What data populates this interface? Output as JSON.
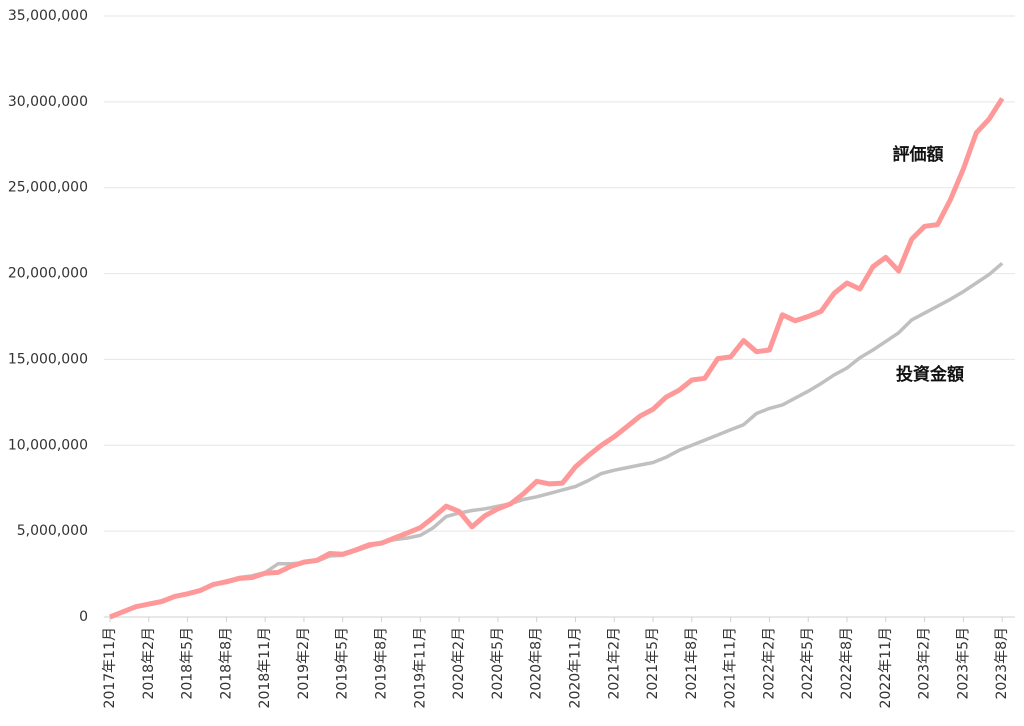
{
  "chart_data": {
    "type": "line",
    "categories": [
      "2017年11月",
      null,
      null,
      "2018年2月",
      null,
      null,
      "2018年5月",
      null,
      null,
      "2018年8月",
      null,
      null,
      "2018年11月",
      null,
      null,
      "2019年2月",
      null,
      null,
      "2019年5月",
      null,
      null,
      "2019年8月",
      null,
      null,
      "2019年11月",
      null,
      null,
      "2020年2月",
      null,
      null,
      "2020年5月",
      null,
      null,
      "2020年8月",
      null,
      null,
      "2020年11月",
      null,
      null,
      "2021年2月",
      null,
      null,
      "2021年5月",
      null,
      null,
      "2021年8月",
      null,
      null,
      "2021年11月",
      null,
      null,
      "2022年2月",
      null,
      null,
      "2022年5月",
      null,
      null,
      "2022年8月",
      null,
      null,
      "2022年11月",
      null,
      null,
      "2023年2月",
      null,
      null,
      "2023年5月",
      null,
      null,
      "2023年8月"
    ],
    "series": [
      {
        "name": "評価額",
        "color": "#ff9999",
        "values": [
          0,
          300000,
          600000,
          750000,
          900000,
          1200000,
          1350000,
          1550000,
          1900000,
          2050000,
          2250000,
          2300000,
          2550000,
          2600000,
          2950000,
          3200000,
          3300000,
          3700000,
          3650000,
          3900000,
          4200000,
          4300000,
          4600000,
          4900000,
          5200000,
          5800000,
          6450000,
          6150000,
          5250000,
          5900000,
          6300000,
          6600000,
          7200000,
          7900000,
          7750000,
          7800000,
          8750000,
          9400000,
          10000000,
          10500000,
          11100000,
          11700000,
          12100000,
          12800000,
          13200000,
          13800000,
          13900000,
          15050000,
          15150000,
          16100000,
          15450000,
          15550000,
          17600000,
          17250000,
          17500000,
          17800000,
          18850000,
          19450000,
          19100000,
          20400000,
          20950000,
          20150000,
          22000000,
          22750000,
          22850000,
          24300000,
          26100000,
          28200000,
          29000000,
          30200000
        ]
      },
      {
        "name": "投資金額",
        "color": "#c0c0c0",
        "values": [
          0,
          300000,
          600000,
          750000,
          900000,
          1200000,
          1350000,
          1550000,
          1900000,
          2100000,
          2300000,
          2400000,
          2600000,
          3100000,
          3100000,
          3150000,
          3250000,
          3550000,
          3600000,
          3850000,
          4100000,
          4350000,
          4500000,
          4600000,
          4750000,
          5200000,
          5850000,
          6050000,
          6200000,
          6300000,
          6450000,
          6600000,
          6850000,
          7000000,
          7200000,
          7400000,
          7600000,
          7950000,
          8350000,
          8550000,
          8700000,
          8850000,
          9000000,
          9300000,
          9700000,
          10000000,
          10300000,
          10600000,
          10900000,
          11200000,
          11850000,
          12150000,
          12350000,
          12750000,
          13150000,
          13600000,
          14100000,
          14500000,
          15100000,
          15550000,
          16050000,
          16550000,
          17300000,
          17700000,
          18100000,
          18500000,
          18950000,
          19450000,
          19950000,
          20600000
        ]
      }
    ],
    "ylim": [
      0,
      35000000
    ],
    "yticks": [
      0,
      {
        "value": 5000000,
        "label": "5,000,000"
      },
      {
        "value": 10000000,
        "label": "10,000,000"
      },
      {
        "value": 15000000,
        "label": "15,000,000"
      },
      {
        "value": 20000000,
        "label": "20,000,000"
      },
      {
        "value": 25000000,
        "label": "25,000,000"
      },
      {
        "value": 30000000,
        "label": "30,000,000"
      },
      {
        "value": 35000000,
        "label": "35,000,000"
      }
    ],
    "grid": true
  }
}
